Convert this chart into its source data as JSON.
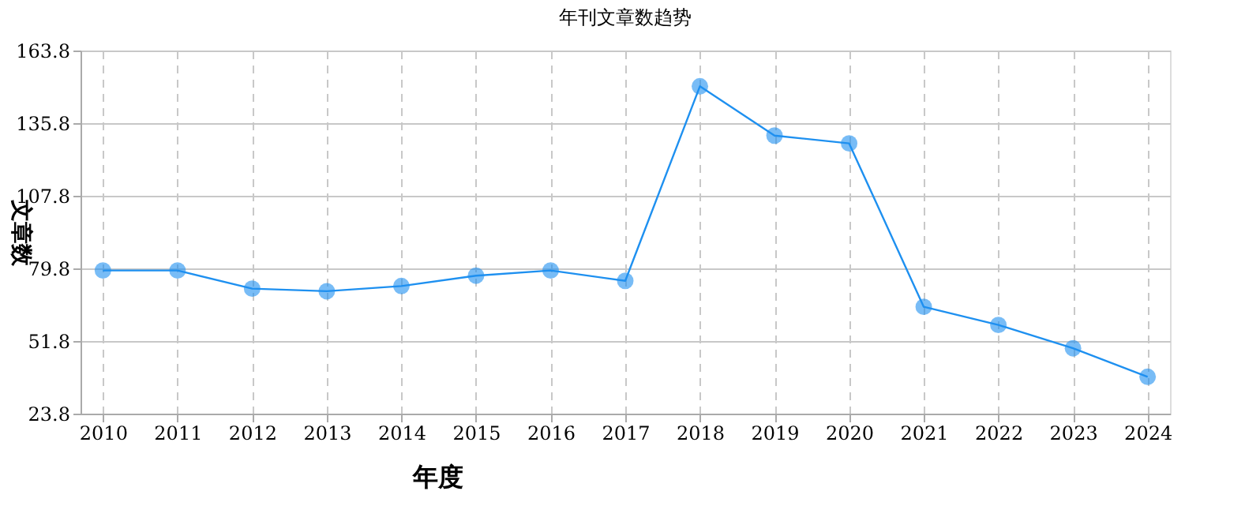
{
  "chart_data": {
    "type": "line",
    "title": "年刊文章数趋势",
    "xlabel": "年度",
    "ylabel": "文章数",
    "categories": [
      "2010",
      "2011",
      "2012",
      "2013",
      "2014",
      "2015",
      "2016",
      "2017",
      "2018",
      "2019",
      "2020",
      "2021",
      "2022",
      "2023",
      "2024"
    ],
    "series": [
      {
        "color": "#1e90f0",
        "values": [
          79,
          79,
          72,
          71,
          73,
          77,
          79,
          75,
          150,
          131,
          128,
          65,
          58,
          49,
          38
        ]
      }
    ],
    "ylim": [
      23.8,
      163.8
    ],
    "yticks": [
      23.8,
      51.8,
      79.8,
      107.8,
      135.8,
      163.8
    ],
    "grid": true,
    "marker": "circle",
    "line_style": "solid"
  }
}
